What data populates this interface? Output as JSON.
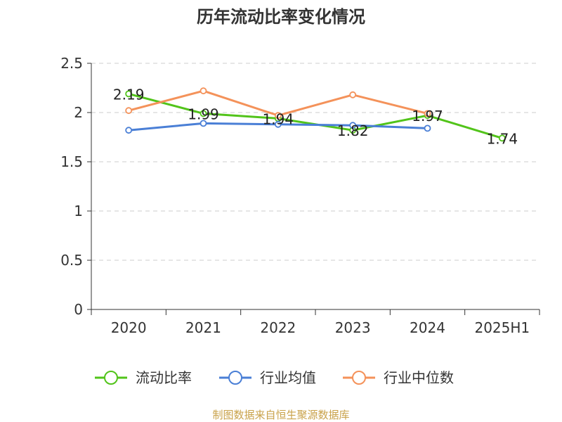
{
  "chart_data": {
    "type": "line",
    "title": "历年流动比率变化情况",
    "categories": [
      "2020",
      "2021",
      "2022",
      "2023",
      "2024",
      "2025H1"
    ],
    "ylim": [
      0,
      2.5
    ],
    "yticks": [
      "0",
      "0.5",
      "1",
      "1.5",
      "2",
      "2.5"
    ],
    "grid": true,
    "legend_position": "bottom",
    "series": [
      {
        "name": "流动比率",
        "color": "#52c41a",
        "values": [
          2.19,
          1.99,
          1.94,
          1.82,
          1.97,
          1.74
        ],
        "labels": [
          "2.19",
          "1.99",
          "1.94",
          "1.82",
          "1.97",
          "1.74"
        ]
      },
      {
        "name": "行业均值",
        "color": "#4a7fd6",
        "values": [
          1.82,
          1.89,
          1.88,
          1.87,
          1.84,
          null
        ]
      },
      {
        "name": "行业中位数",
        "color": "#f4925a",
        "values": [
          2.02,
          2.22,
          1.97,
          2.18,
          1.99,
          null
        ]
      }
    ]
  },
  "source_text": "制图数据来自恒生聚源数据库"
}
